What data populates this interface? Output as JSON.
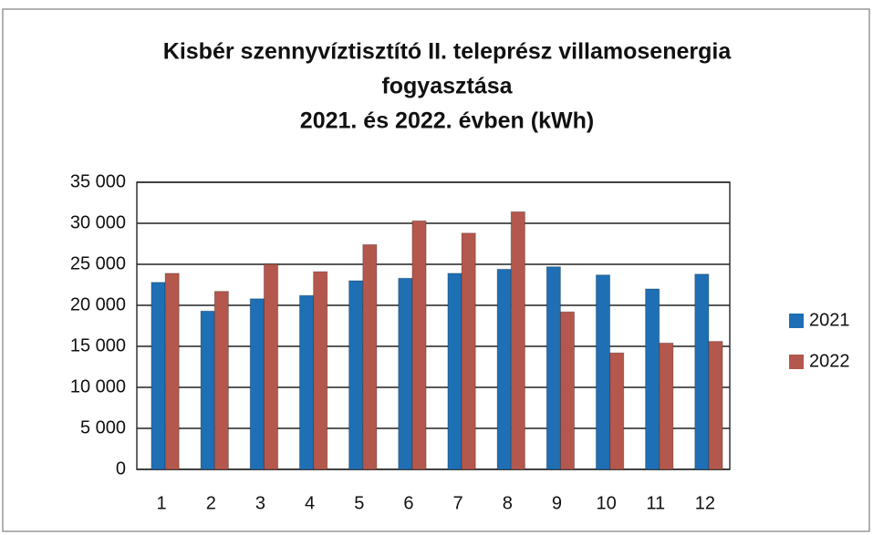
{
  "chart_data": {
    "type": "bar",
    "title": [
      "Kisbér szennyvíztisztító II. teleprész villamosenergia",
      "fogyasztása",
      "2021. és 2022. évben (kWh)"
    ],
    "categories": [
      "1",
      "2",
      "3",
      "4",
      "5",
      "6",
      "7",
      "8",
      "9",
      "10",
      "11",
      "12"
    ],
    "series": [
      {
        "name": "2021",
        "color": "#1f6fb4",
        "values": [
          22800,
          19300,
          20800,
          21200,
          23000,
          23300,
          23900,
          24400,
          24700,
          23700,
          22000,
          23800
        ]
      },
      {
        "name": "2022",
        "color": "#b4574c",
        "values": [
          23900,
          21700,
          25000,
          24100,
          27400,
          30300,
          28800,
          31400,
          19200,
          14200,
          15400,
          15600
        ]
      }
    ],
    "ylim": [
      0,
      35000
    ],
    "yticks": [
      0,
      {
        "value": 5000,
        "label": "5 000"
      },
      {
        "value": 10000,
        "label": "10 000"
      },
      {
        "value": 15000,
        "label": "15 000"
      },
      {
        "value": 20000,
        "label": "20 000"
      },
      {
        "value": 25000,
        "label": "25 000"
      },
      {
        "value": 30000,
        "label": "30 000"
      },
      {
        "value": 35000,
        "label": "35 000"
      }
    ],
    "grid": true,
    "legend": "right"
  }
}
